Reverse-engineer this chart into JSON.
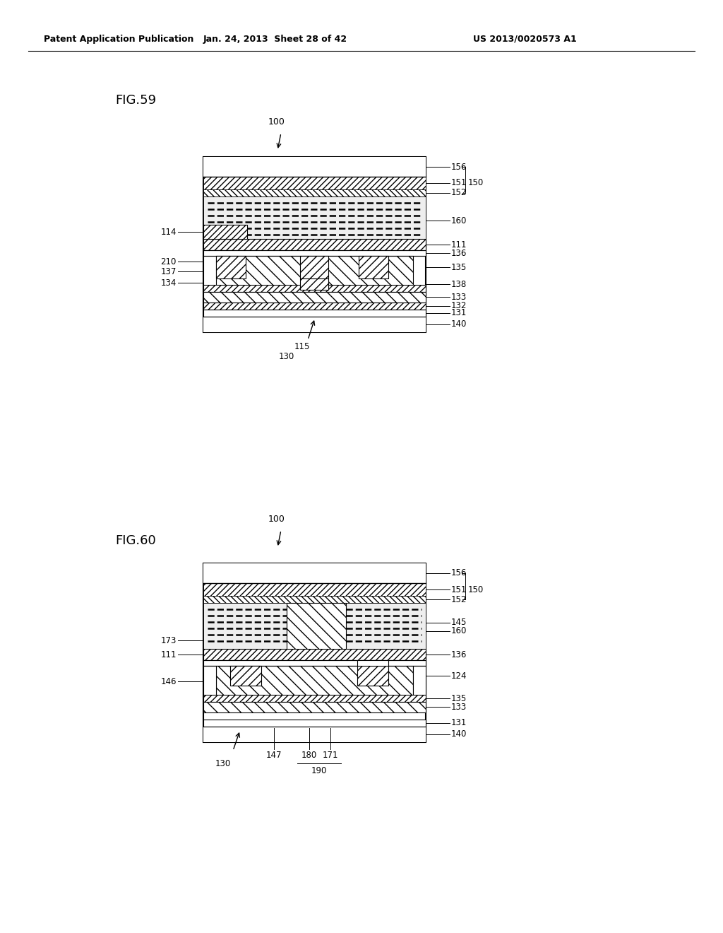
{
  "bg_color": "#ffffff",
  "header_left": "Patent Application Publication",
  "header_mid": "Jan. 24, 2013  Sheet 28 of 42",
  "header_right": "US 2013/0020573 A1",
  "fig59_label": "FIG.59",
  "fig60_label": "FIG.60"
}
